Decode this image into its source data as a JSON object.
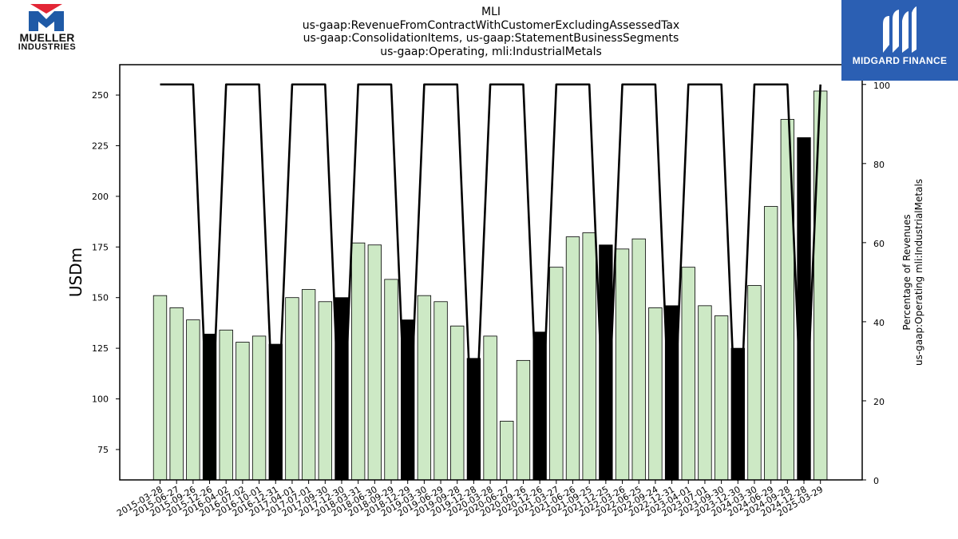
{
  "header": {
    "company_name_line1": "MUELLER",
    "company_name_line2": "INDUSTRIES",
    "brand": "MIDGARD FINANCE"
  },
  "colors": {
    "bar_normal": "#cde9c5",
    "bar_highlight": "#000000",
    "line": "#000000",
    "brand_blue": "#2b5fb3",
    "logo_red": "#e32636",
    "logo_blue": "#1f5aa6"
  },
  "icons": {
    "left_logo": "mueller-m-logo-icon",
    "right_logo": "midgard-mark-icon"
  },
  "chart_data": {
    "type": "bar",
    "title_lines": [
      "MLI",
      "us-gaap:RevenueFromContractWithCustomerExcludingAssessedTax",
      "us-gaap:ConsolidationItems, us-gaap:StatementBusinessSegments",
      "us-gaap:Operating, mli:IndustrialMetals"
    ],
    "ylabel": "USDm",
    "y2label_lines": [
      "Percentage of Revenues",
      "us-gaap:Operating mli:IndustrialMetals"
    ],
    "ylim": [
      60,
      265
    ],
    "y2lim": [
      0,
      105
    ],
    "yticks": [
      75,
      100,
      125,
      150,
      175,
      200,
      225,
      250
    ],
    "y2ticks": [
      0,
      20,
      40,
      60,
      80,
      100
    ],
    "grid": false,
    "categories": [
      "2015-03-28",
      "2015-06-27",
      "2015-09-26",
      "2015-12-26",
      "2016-04-02",
      "2016-07-02",
      "2016-10-01",
      "2016-12-31",
      "2017-04-01",
      "2017-07-01",
      "2017-09-30",
      "2017-12-30",
      "2018-03-31",
      "2018-06-30",
      "2018-09-29",
      "2018-12-29",
      "2019-03-30",
      "2019-06-29",
      "2019-09-28",
      "2019-12-28",
      "2020-03-28",
      "2020-06-27",
      "2020-09-26",
      "2020-12-26",
      "2021-03-27",
      "2021-06-26",
      "2021-09-25",
      "2021-12-25",
      "2022-03-26",
      "2022-06-25",
      "2022-09-24",
      "2022-12-31",
      "2023-04-01",
      "2023-07-01",
      "2023-09-30",
      "2023-12-30",
      "2024-03-30",
      "2024-06-29",
      "2024-09-28",
      "2024-12-28",
      "2025-03-29"
    ],
    "series": [
      {
        "type": "bar",
        "values": [
          151,
          145,
          139,
          132,
          134,
          128,
          131,
          127,
          150,
          154,
          148,
          150,
          177,
          176,
          159,
          139,
          151,
          148,
          136,
          120,
          131,
          89,
          119,
          133,
          165,
          180,
          182,
          176,
          174,
          179,
          145,
          146,
          165,
          146,
          141,
          125,
          156,
          195,
          238,
          229,
          252
        ],
        "highlight": [
          false,
          false,
          false,
          true,
          false,
          false,
          false,
          true,
          false,
          false,
          false,
          true,
          false,
          false,
          false,
          true,
          false,
          false,
          false,
          true,
          false,
          false,
          false,
          true,
          false,
          false,
          false,
          true,
          false,
          false,
          false,
          true,
          false,
          false,
          false,
          true,
          false,
          false,
          false,
          true,
          false
        ]
      },
      {
        "type": "line",
        "axis": "right",
        "values": [
          100,
          100,
          100,
          0,
          100,
          100,
          100,
          0,
          100,
          100,
          100,
          0,
          100,
          100,
          100,
          0,
          100,
          100,
          100,
          0,
          100,
          100,
          100,
          0,
          100,
          100,
          100,
          0,
          100,
          100,
          100,
          0,
          100,
          100,
          100,
          0,
          100,
          100,
          100,
          0,
          100
        ]
      }
    ]
  }
}
